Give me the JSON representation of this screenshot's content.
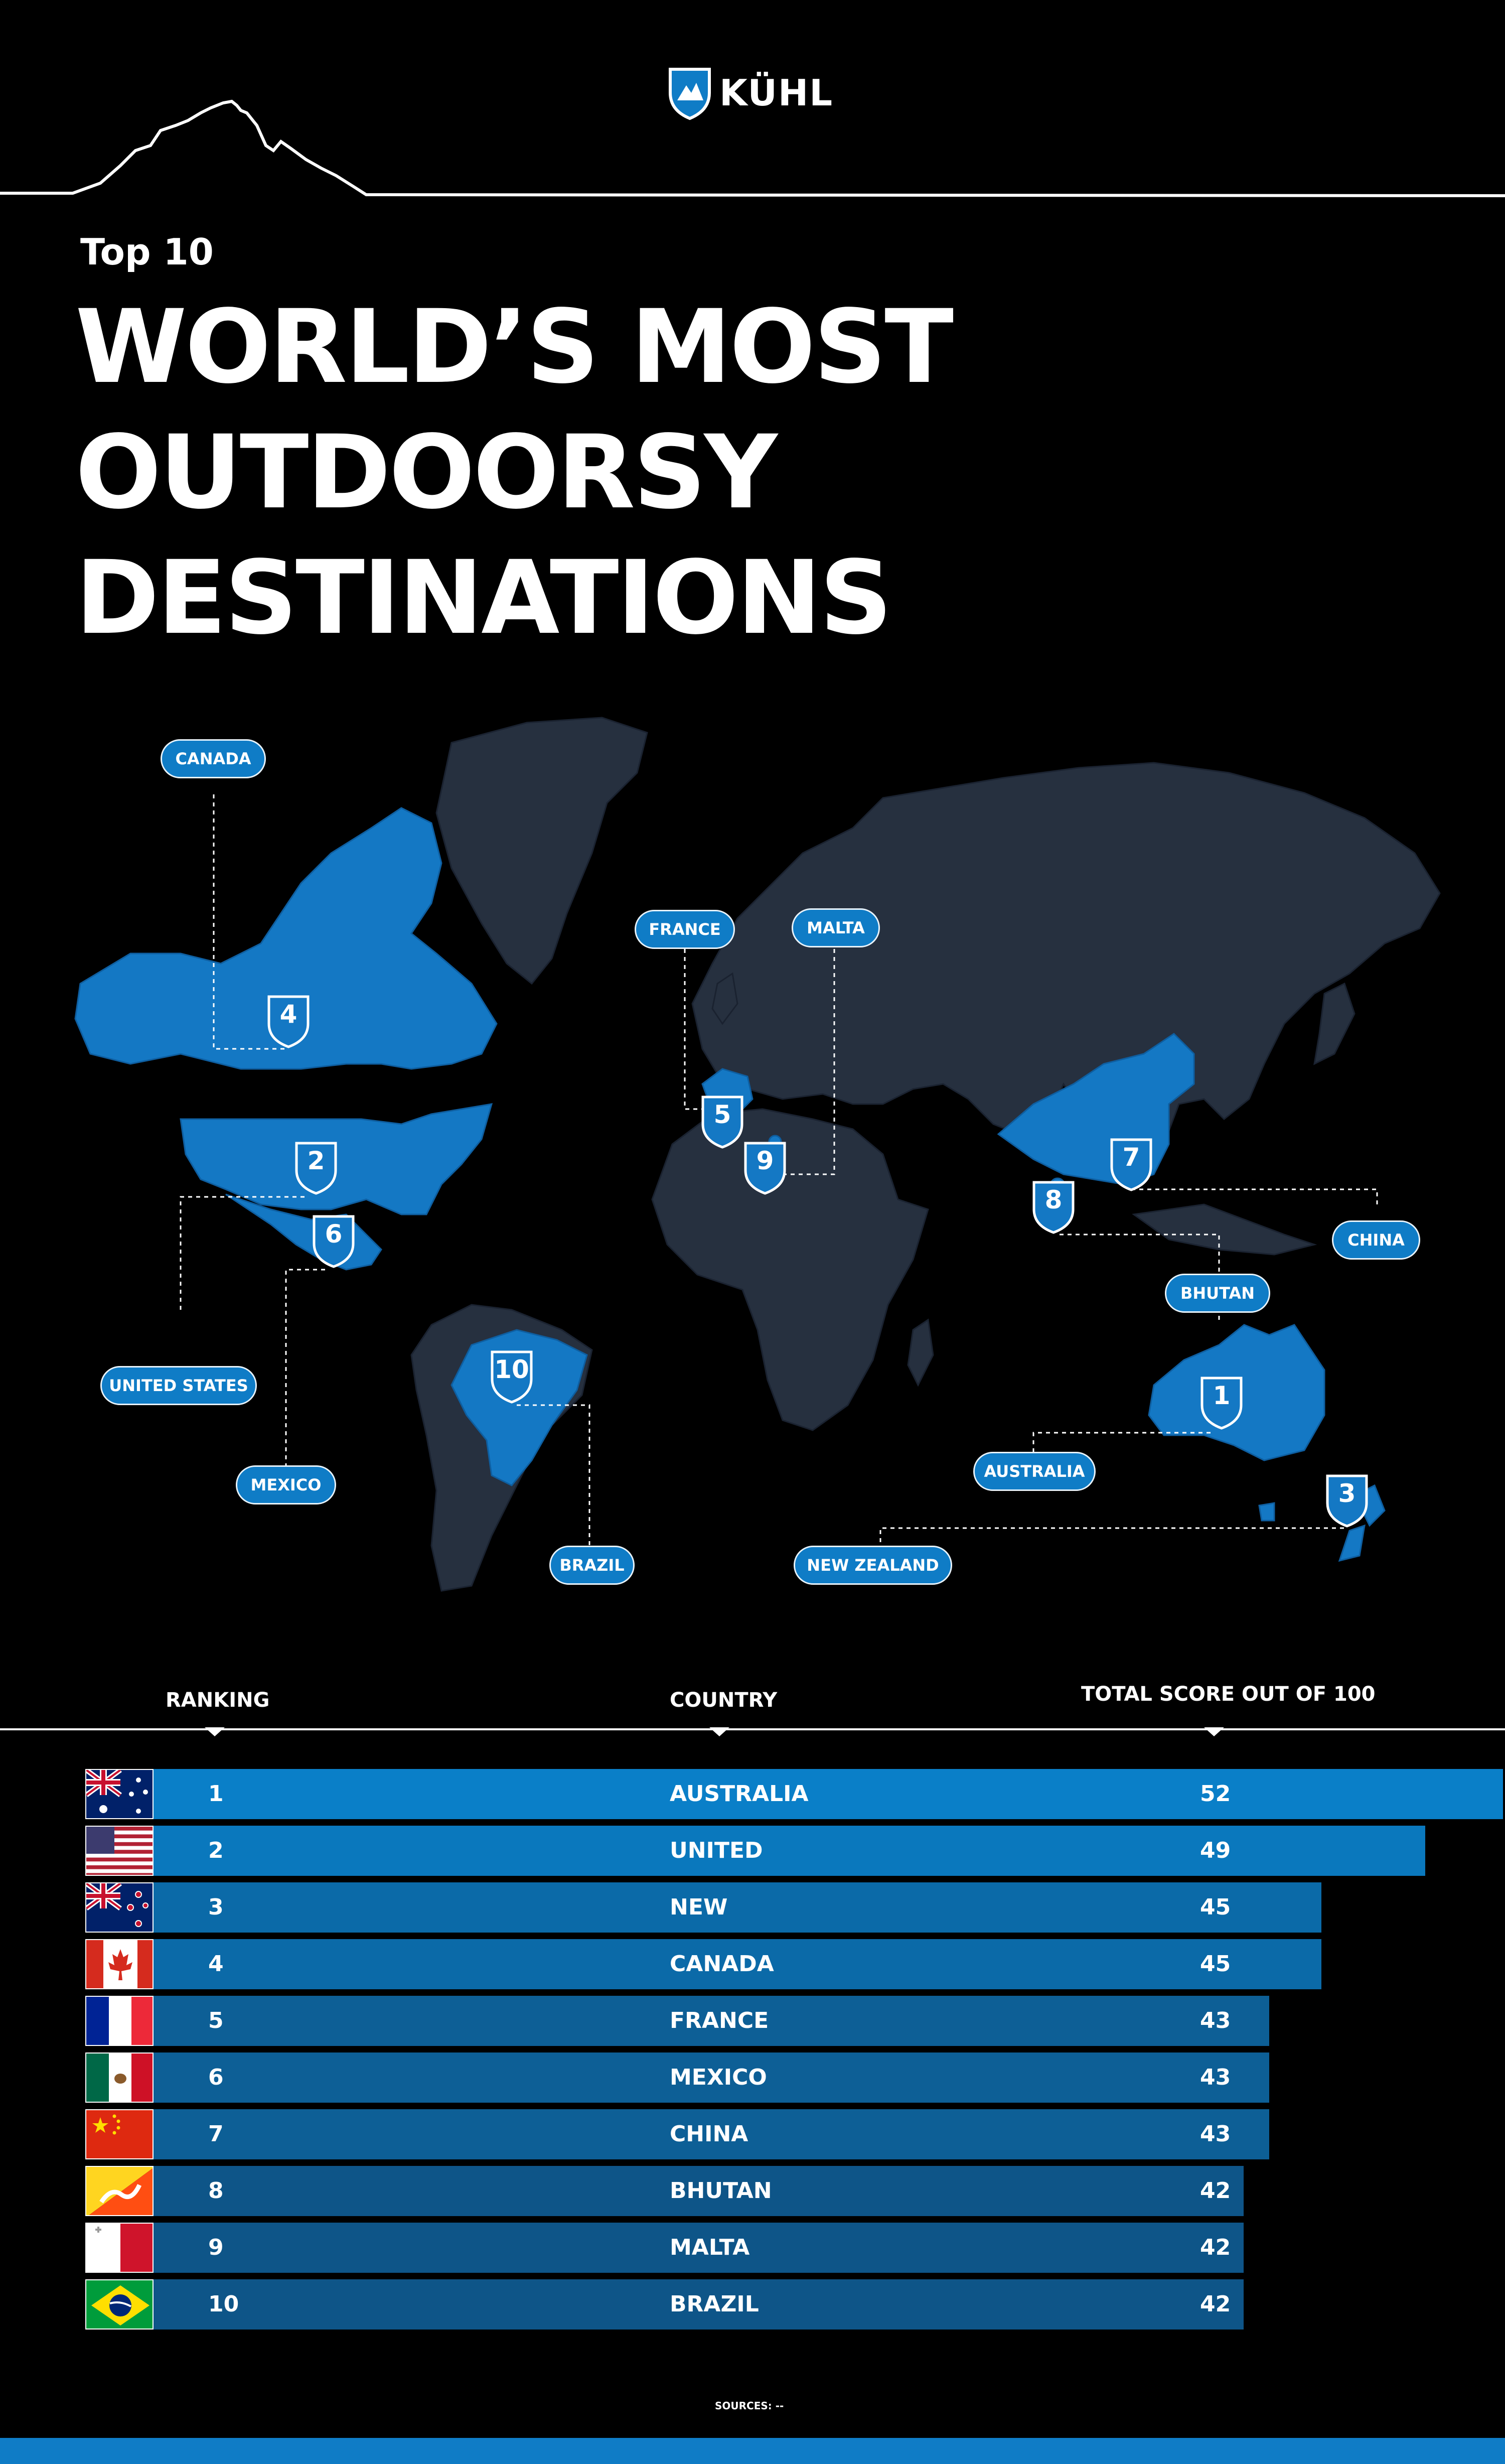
{
  "brand": {
    "name": "KÜHL",
    "accent": "#0f7cc6"
  },
  "heading": {
    "kicker": "Top 10",
    "lines": [
      "WORLD’S MOST",
      "OUTDOORSY",
      "DESTINATIONS"
    ]
  },
  "map": {
    "labels": {
      "canada": "CANADA",
      "united_states": "UNITED STATES",
      "mexico": "MEXICO",
      "brazil": "BRAZIL",
      "france": "FRANCE",
      "malta": "MALTA",
      "china": "CHINA",
      "bhutan": "BHUTAN",
      "australia": "AUSTRALIA",
      "new_zealand": "NEW ZEALAND"
    },
    "markers": {
      "australia": "1",
      "united_states": "2",
      "new_zealand": "3",
      "canada": "4",
      "france": "5",
      "mexico": "6",
      "china": "7",
      "bhutan": "8",
      "malta": "9",
      "brazil": "10"
    }
  },
  "table": {
    "headers": {
      "ranking": "RANKING",
      "country": "COUNTRY",
      "score": "TOTAL SCORE OUT OF 100"
    },
    "rows": [
      {
        "rank": "1",
        "country": "AUSTRALIA",
        "score": "52",
        "score_value": 52,
        "bar_color": "#0a7fc8"
      },
      {
        "rank": "2",
        "country": "UNITED STATES",
        "score": "49",
        "score_value": 49,
        "bar_color": "#0a78bd"
      },
      {
        "rank": "3",
        "country": "NEW ZEALAND",
        "score": "45",
        "score_value": 45,
        "bar_color": "#0b6aa8"
      },
      {
        "rank": "4",
        "country": "CANADA",
        "score": "45",
        "score_value": 45,
        "bar_color": "#0b6aa8"
      },
      {
        "rank": "5",
        "country": "FRANCE",
        "score": "43",
        "score_value": 43,
        "bar_color": "#0d5f96"
      },
      {
        "rank": "6",
        "country": "MEXICO",
        "score": "43",
        "score_value": 43,
        "bar_color": "#0d5f96"
      },
      {
        "rank": "7",
        "country": "CHINA",
        "score": "43",
        "score_value": 43,
        "bar_color": "#0d5f96"
      },
      {
        "rank": "8",
        "country": "BHUTAN",
        "score": "42",
        "score_value": 42,
        "bar_color": "#0e5588"
      },
      {
        "rank": "9",
        "country": "MALTA",
        "score": "42",
        "score_value": 42,
        "bar_color": "#0e5588"
      },
      {
        "rank": "10",
        "country": "BRAZIL",
        "score": "42",
        "score_value": 42,
        "bar_color": "#0e5588"
      }
    ]
  },
  "footer": {
    "sources": "SOURCES: --"
  }
}
